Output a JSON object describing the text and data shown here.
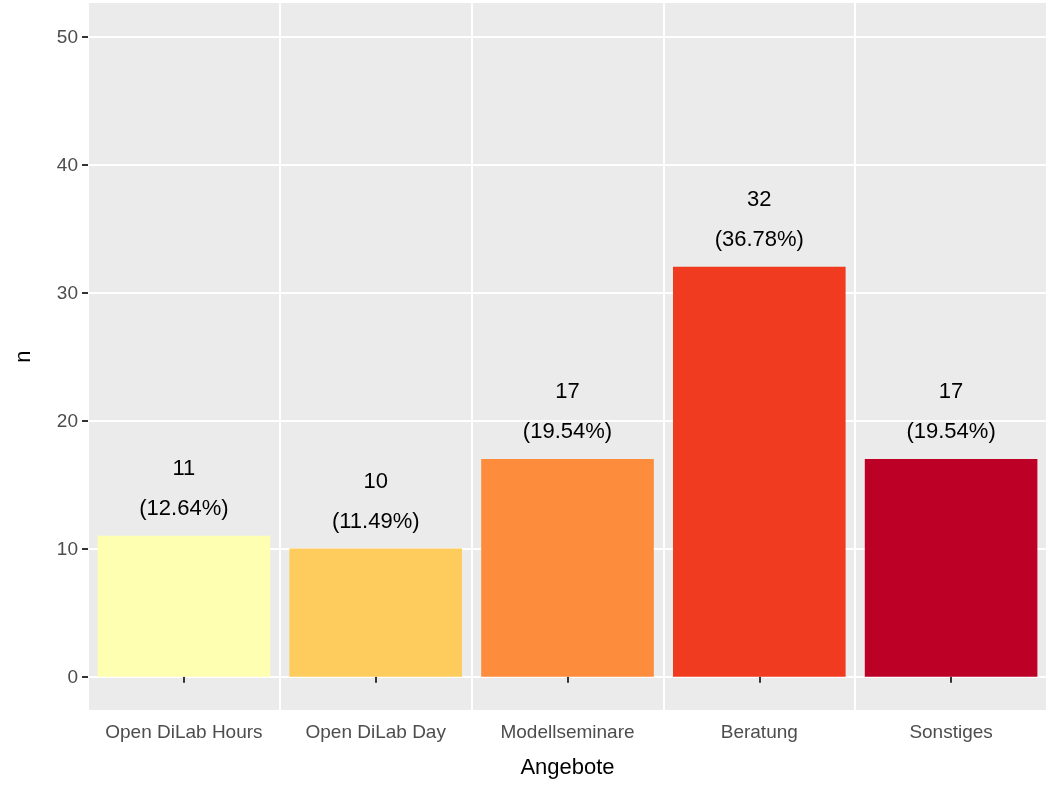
{
  "chart_data": {
    "type": "bar",
    "xlabel": "Angebote",
    "ylabel": "n",
    "categories": [
      "Open DiLab Hours",
      "Open DiLab Day",
      "Modellseminare",
      "Beratung",
      "Sonstiges"
    ],
    "values": [
      11,
      10,
      17,
      32,
      17
    ],
    "colors": [
      "#ffffb2",
      "#fecc5c",
      "#fd8d3c",
      "#f03b20",
      "#bd0026"
    ],
    "value_labels": [
      "11\n(12.64%)",
      "10\n(11.49%)",
      "17\n(19.54%)",
      "32\n(36.78%)",
      "17\n(19.54%)"
    ],
    "ylim": [
      -2.6,
      52.6
    ],
    "yticks": [
      0,
      10,
      20,
      30,
      40,
      50
    ],
    "grid": true
  }
}
